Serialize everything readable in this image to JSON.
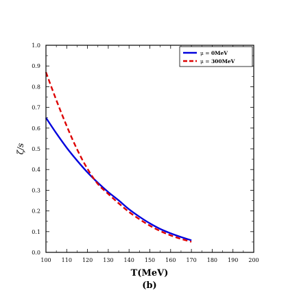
{
  "chart_data": {
    "type": "line",
    "xlabel": "T(MeV)",
    "ylabel": "ζ/s",
    "caption": "(b)",
    "xlim": [
      100,
      200
    ],
    "ylim": [
      0.0,
      1.0
    ],
    "xticks": [
      100,
      110,
      120,
      130,
      140,
      150,
      160,
      170,
      180,
      190,
      200
    ],
    "yticks": [
      "0.0",
      "0.1",
      "0.2",
      "0.3",
      "0.4",
      "0.5",
      "0.6",
      "0.7",
      "0.8",
      "0.9",
      "1.0"
    ],
    "grid": false,
    "legend_position": "top-right",
    "series": [
      {
        "name": "μ = 0MeV",
        "legend_prefix": "μ = ",
        "legend_value": "0MeV",
        "color": "#0000dd",
        "style": "solid",
        "x": [
          100,
          105,
          110,
          115,
          120,
          125,
          130,
          135,
          140,
          145,
          150,
          155,
          160,
          165,
          170
        ],
        "y": [
          0.65,
          0.575,
          0.505,
          0.443,
          0.386,
          0.336,
          0.291,
          0.251,
          0.208,
          0.172,
          0.14,
          0.113,
          0.092,
          0.074,
          0.058
        ]
      },
      {
        "name": "μ = 300MeV",
        "legend_prefix": "μ = ",
        "legend_value": "300MeV",
        "color": "#dd0000",
        "style": "dashed",
        "x": [
          100,
          105,
          110,
          115,
          120,
          125,
          130,
          135,
          140,
          145,
          150,
          155,
          160,
          165,
          170
        ],
        "y": [
          0.87,
          0.735,
          0.61,
          0.497,
          0.403,
          0.33,
          0.282,
          0.237,
          0.195,
          0.16,
          0.129,
          0.103,
          0.082,
          0.065,
          0.051
        ]
      }
    ]
  }
}
